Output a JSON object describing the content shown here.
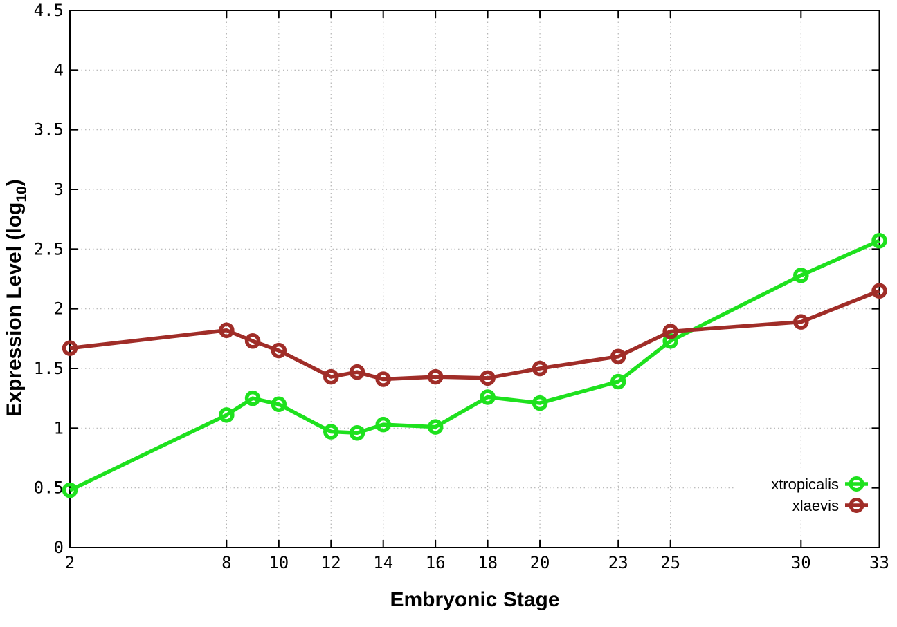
{
  "chart_data": {
    "type": "line",
    "title": "",
    "xlabel": "Embryonic Stage",
    "ylabel_pre": "Expression Level (log",
    "ylabel_sub": "10",
    "ylabel_post": ")",
    "x": [
      2,
      8,
      9,
      10,
      12,
      13,
      14,
      16,
      18,
      20,
      23,
      25,
      30,
      33
    ],
    "xlim": [
      2,
      33
    ],
    "ylim": [
      0,
      4.5
    ],
    "x_ticks": [
      2,
      8,
      10,
      12,
      14,
      16,
      18,
      20,
      23,
      25,
      30,
      33
    ],
    "x_tick_labels": [
      "2",
      "8",
      "10",
      "12",
      "14",
      "16",
      "18",
      "20",
      "23",
      "25",
      "30",
      "33"
    ],
    "y_ticks": [
      0,
      0.5,
      1,
      1.5,
      2,
      2.5,
      3,
      3.5,
      4,
      4.5
    ],
    "y_tick_labels": [
      "0",
      "0.5",
      "1",
      "1.5",
      "2",
      "2.5",
      "3",
      "3.5",
      "4",
      "4.5"
    ],
    "grid": true,
    "legend_position": "inside-bottom-right",
    "marker": "open-circle",
    "series": [
      {
        "name": "xtropicalis",
        "color": "#1EE11E",
        "values": [
          0.48,
          1.11,
          1.25,
          1.2,
          0.97,
          0.96,
          1.03,
          1.01,
          1.26,
          1.21,
          1.39,
          1.73,
          2.28,
          2.57
        ]
      },
      {
        "name": "xlaevis",
        "color": "#A02D28",
        "values": [
          1.67,
          1.82,
          1.73,
          1.65,
          1.43,
          1.47,
          1.41,
          1.43,
          1.42,
          1.5,
          1.6,
          1.81,
          1.89,
          2.15
        ]
      }
    ],
    "colors": {
      "grid": "#b4b4b4",
      "axis": "#000000",
      "background": "#ffffff",
      "text": "#000000"
    }
  }
}
